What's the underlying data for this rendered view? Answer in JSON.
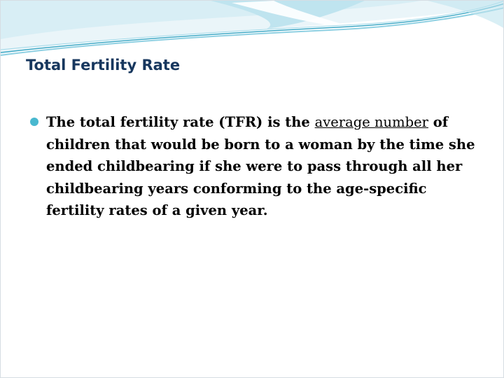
{
  "slide": {
    "title": "Total Fertility Rate",
    "bullet": {
      "before": "The total fertility rate (TFR) is the ",
      "underlined": "average number",
      "after": " of children that would be born to a woman by the time she ended childbearing if she were to pass through all her childbearing years conforming to the age-specific fertility rates of a given year."
    }
  },
  "colors": {
    "title": "#17375e",
    "bullet": "#49b8cf",
    "swoosh_light": "#d8eef5",
    "swoosh_mid": "#8fd0e2",
    "swoosh_dark": "#3fa9c6"
  }
}
